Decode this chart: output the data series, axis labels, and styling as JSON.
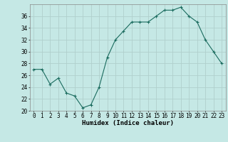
{
  "x": [
    0,
    1,
    2,
    3,
    4,
    5,
    6,
    7,
    8,
    9,
    10,
    11,
    12,
    13,
    14,
    15,
    16,
    17,
    18,
    19,
    20,
    21,
    22,
    23
  ],
  "y": [
    27,
    27,
    24.5,
    25.5,
    23,
    22.5,
    20.5,
    21,
    24,
    29,
    32,
    33.5,
    35,
    35,
    35,
    36,
    37,
    37,
    37.5,
    36,
    35,
    32,
    30,
    28
  ],
  "line_color": "#1a6b5e",
  "marker_color": "#1a6b5e",
  "bg_color": "#c5e8e5",
  "grid_color": "#b0d0cc",
  "xlabel": "Humidex (Indice chaleur)",
  "ylim": [
    20,
    38
  ],
  "xlim": [
    -0.5,
    23.5
  ],
  "yticks": [
    20,
    22,
    24,
    26,
    28,
    30,
    32,
    34,
    36
  ],
  "xticks": [
    0,
    1,
    2,
    3,
    4,
    5,
    6,
    7,
    8,
    9,
    10,
    11,
    12,
    13,
    14,
    15,
    16,
    17,
    18,
    19,
    20,
    21,
    22,
    23
  ],
  "tick_fontsize": 5.5,
  "label_fontsize": 6.5
}
